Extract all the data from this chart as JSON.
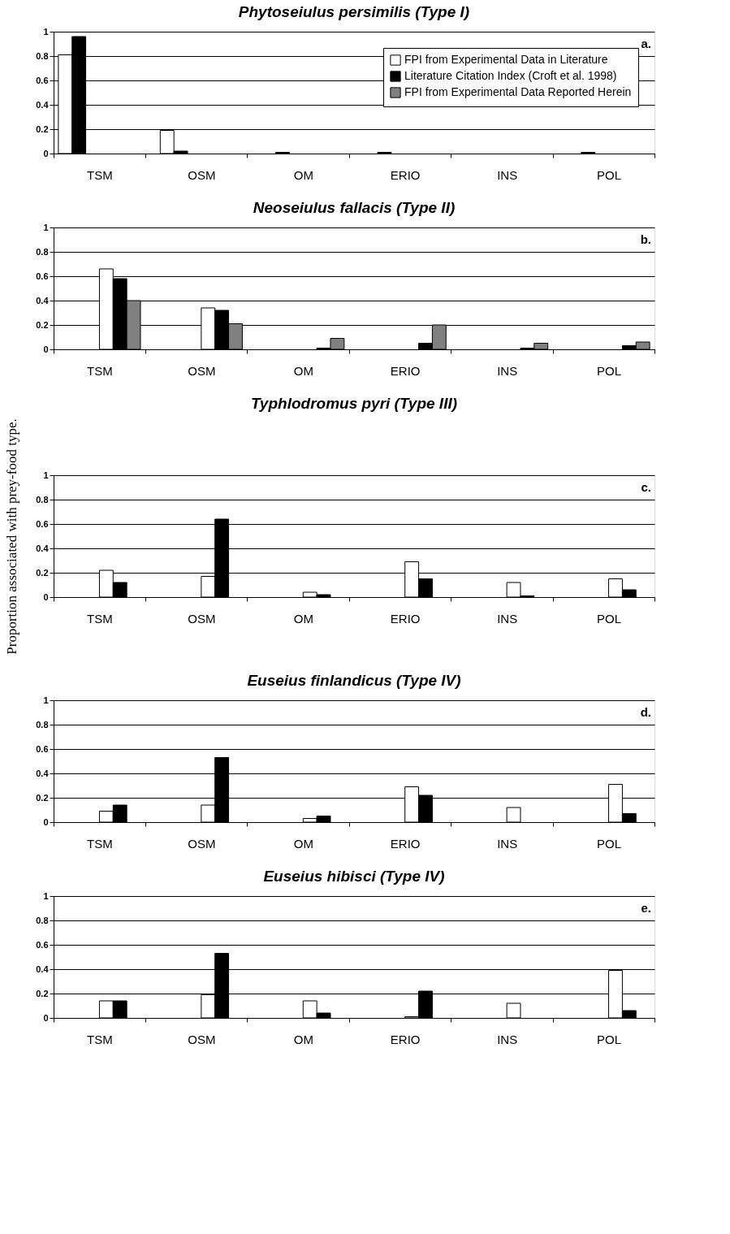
{
  "chart_data": [
    {
      "type": "bar",
      "title": "Phytoseiulus persimilis (Type I)",
      "categories": [
        "TSM",
        "OSM",
        "OM",
        "ERIO",
        "INS",
        "POL"
      ],
      "ylim": [
        0,
        1
      ],
      "yticks": [
        0,
        0.2,
        0.4,
        0.6,
        0.8,
        1
      ],
      "grid": "y",
      "legend": "top right",
      "annotations": [
        "a."
      ],
      "series": [
        {
          "name": "FPI from Experimental Data in Literature",
          "color": "#ffffff",
          "values": [
            0.81,
            0.19,
            null,
            null,
            null,
            null
          ]
        },
        {
          "name": "Literature Citation Index (Croft et al. 1998)",
          "color": "#000000",
          "values": [
            0.96,
            0.02,
            0.01,
            0.01,
            null,
            0.01
          ]
        },
        {
          "name": "FPI from Experimental Data Reported Herein",
          "color": "#808080",
          "values": [
            null,
            null,
            null,
            null,
            null,
            null
          ]
        }
      ]
    },
    {
      "type": "bar",
      "title": "Neoseiulus fallacis (Type II)",
      "categories": [
        "TSM",
        "OSM",
        "OM",
        "ERIO",
        "INS",
        "POL"
      ],
      "ylim": [
        0,
        1
      ],
      "yticks": [
        0,
        0.2,
        0.4,
        0.6,
        0.8,
        1
      ],
      "grid": "y",
      "annotations": [
        "b."
      ],
      "series": [
        {
          "color": "#ffffff",
          "values": [
            0.66,
            0.34,
            null,
            null,
            null,
            null
          ]
        },
        {
          "color": "#000000",
          "values": [
            0.58,
            0.32,
            0.01,
            0.05,
            0.01,
            0.03
          ]
        },
        {
          "color": "#808080",
          "values": [
            0.4,
            0.21,
            0.09,
            0.2,
            0.05,
            0.06
          ]
        }
      ]
    },
    {
      "type": "bar",
      "title": "Typhlodromus pyri (Type III)",
      "ylabel": "Proportion associated with prey-food type.",
      "categories": [
        "TSM",
        "OSM",
        "OM",
        "ERIO",
        "INS",
        "POL"
      ],
      "ylim": [
        0,
        1
      ],
      "yticks": [
        0,
        0.2,
        0.4,
        0.6,
        0.8,
        1
      ],
      "grid": "y",
      "annotations": [
        "c."
      ],
      "series": [
        {
          "color": "#ffffff",
          "values": [
            0.22,
            0.17,
            0.04,
            0.29,
            0.12,
            0.15
          ]
        },
        {
          "color": "#000000",
          "values": [
            0.12,
            0.64,
            0.02,
            0.15,
            0.01,
            0.06
          ]
        }
      ]
    },
    {
      "type": "bar",
      "title": "Euseius finlandicus (Type IV)",
      "categories": [
        "TSM",
        "OSM",
        "OM",
        "ERIO",
        "INS",
        "POL"
      ],
      "ylim": [
        0,
        1
      ],
      "yticks": [
        0,
        0.2,
        0.4,
        0.6,
        0.8,
        1
      ],
      "grid": "y",
      "annotations": [
        "d."
      ],
      "series": [
        {
          "color": "#ffffff",
          "values": [
            0.09,
            0.14,
            0.03,
            0.29,
            0.12,
            0.31
          ]
        },
        {
          "color": "#000000",
          "values": [
            0.14,
            0.53,
            0.05,
            0.22,
            null,
            0.07
          ]
        }
      ]
    },
    {
      "type": "bar",
      "title": "Euseius hibisci (Type IV)",
      "categories": [
        "TSM",
        "OSM",
        "OM",
        "ERIO",
        "INS",
        "POL"
      ],
      "ylim": [
        0,
        1
      ],
      "yticks": [
        0,
        0.2,
        0.4,
        0.6,
        0.8,
        1
      ],
      "grid": "y",
      "annotations": [
        "e."
      ],
      "series": [
        {
          "color": "#ffffff",
          "values": [
            0.14,
            0.19,
            0.14,
            0.01,
            0.12,
            0.39
          ]
        },
        {
          "color": "#000000",
          "values": [
            0.14,
            0.53,
            0.04,
            0.22,
            null,
            0.06
          ]
        }
      ]
    }
  ]
}
